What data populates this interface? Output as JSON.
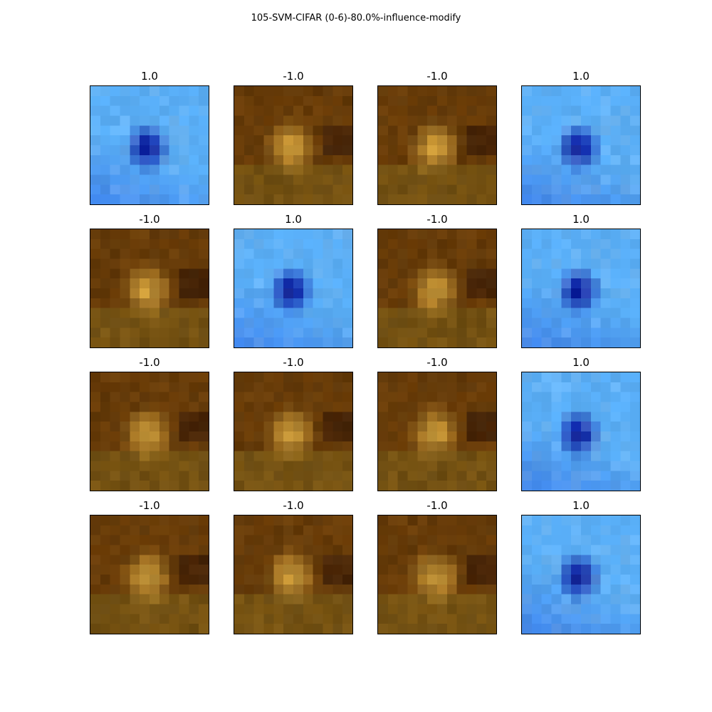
{
  "figure": {
    "title": "105-SVM-CIFAR (0-6)-80.0%-influence-modify"
  },
  "panels": [
    {
      "label": "1.0",
      "tone": "blue"
    },
    {
      "label": "-1.0",
      "tone": "brown"
    },
    {
      "label": "-1.0",
      "tone": "brown"
    },
    {
      "label": "1.0",
      "tone": "blue"
    },
    {
      "label": "-1.0",
      "tone": "brown"
    },
    {
      "label": "1.0",
      "tone": "blue"
    },
    {
      "label": "-1.0",
      "tone": "brown"
    },
    {
      "label": "1.0",
      "tone": "blue"
    },
    {
      "label": "-1.0",
      "tone": "brown"
    },
    {
      "label": "-1.0",
      "tone": "brown"
    },
    {
      "label": "-1.0",
      "tone": "brown"
    },
    {
      "label": "1.0",
      "tone": "blue"
    },
    {
      "label": "-1.0",
      "tone": "brown"
    },
    {
      "label": "-1.0",
      "tone": "brown"
    },
    {
      "label": "-1.0",
      "tone": "brown"
    },
    {
      "label": "1.0",
      "tone": "blue"
    }
  ],
  "palette": {
    "blue": {
      "light": "#5cb4ff",
      "mid": "#3f86f2",
      "dark": "#0a1fa8",
      "deep": "#00138a"
    },
    "brown": {
      "light": "#d8a33a",
      "mid": "#8c5608",
      "dark": "#5a2e04",
      "deep": "#2c0f02"
    }
  }
}
